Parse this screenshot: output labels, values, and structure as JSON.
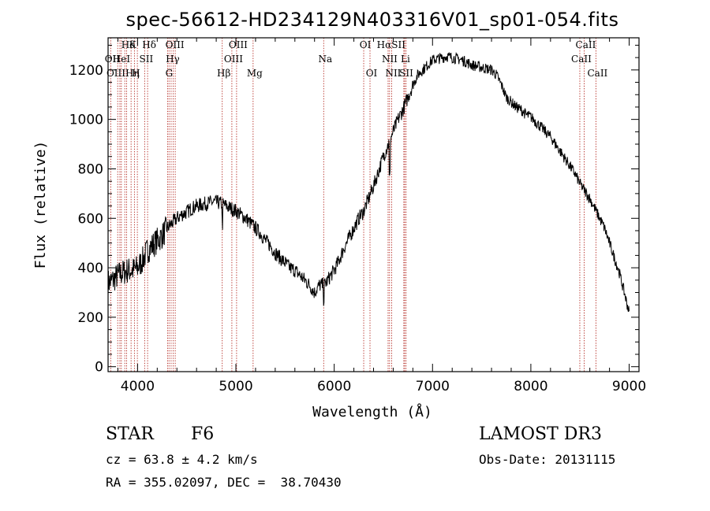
{
  "chart_data": {
    "type": "line",
    "title": "spec-56612-HD234129N403316V01_sp01-054.fits",
    "xlabel": "Wavelength (Å)",
    "ylabel": "Flux (relative)",
    "xlim": [
      3700,
      9100
    ],
    "ylim": [
      -20,
      1330
    ],
    "xticks": [
      4000,
      5000,
      6000,
      7000,
      8000,
      9000
    ],
    "yticks": [
      0,
      200,
      400,
      600,
      800,
      1000,
      1200
    ],
    "series": [
      {
        "name": "spectrum",
        "x": [
          3700,
          3750,
          3800,
          3850,
          3900,
          3950,
          4000,
          4050,
          4100,
          4150,
          4200,
          4250,
          4300,
          4350,
          4400,
          4450,
          4500,
          4550,
          4600,
          4650,
          4700,
          4750,
          4800,
          4850,
          4900,
          4950,
          5000,
          5050,
          5100,
          5150,
          5200,
          5250,
          5300,
          5350,
          5400,
          5450,
          5500,
          5550,
          5600,
          5650,
          5700,
          5750,
          5800,
          5850,
          5900,
          5950,
          6000,
          6050,
          6100,
          6150,
          6200,
          6250,
          6300,
          6350,
          6400,
          6450,
          6500,
          6550,
          6600,
          6650,
          6700,
          6750,
          6800,
          6850,
          6900,
          6950,
          7000,
          7050,
          7100,
          7150,
          7200,
          7250,
          7300,
          7350,
          7400,
          7450,
          7500,
          7550,
          7600,
          7650,
          7700,
          7750,
          7800,
          7850,
          7900,
          7950,
          8000,
          8050,
          8100,
          8150,
          8200,
          8250,
          8300,
          8350,
          8400,
          8450,
          8500,
          8550,
          8600,
          8650,
          8700,
          8750,
          8800,
          8850,
          8900,
          8950,
          9000
        ],
        "y": [
          340,
          350,
          370,
          380,
          390,
          390,
          400,
          430,
          470,
          490,
          510,
          530,
          560,
          580,
          600,
          615,
          625,
          640,
          650,
          655,
          660,
          665,
          665,
          660,
          650,
          640,
          630,
          615,
          600,
          580,
          560,
          540,
          510,
          490,
          460,
          440,
          420,
          400,
          390,
          370,
          350,
          330,
          300,
          330,
          330,
          360,
          390,
          430,
          480,
          520,
          560,
          600,
          630,
          680,
          730,
          790,
          850,
          900,
          950,
          1000,
          1040,
          1090,
          1140,
          1180,
          1200,
          1220,
          1240,
          1245,
          1250,
          1255,
          1250,
          1245,
          1240,
          1230,
          1220,
          1215,
          1210,
          1205,
          1200,
          1180,
          1140,
          1090,
          1070,
          1050,
          1040,
          1020,
          1010,
          990,
          970,
          950,
          930,
          900,
          870,
          840,
          810,
          780,
          740,
          710,
          680,
          640,
          600,
          560,
          500,
          440,
          380,
          300,
          220
        ]
      }
    ],
    "line_markers": [
      {
        "label": "Hδ",
        "x": 3889,
        "row": 0
      },
      {
        "label": "K",
        "x": 3934,
        "row": 0
      },
      {
        "label": "Hδ",
        "x": 4102,
        "row": 0
      },
      {
        "label": "OIII",
        "x": 4363,
        "row": 0
      },
      {
        "label": "OIII",
        "x": 5007,
        "row": 0
      },
      {
        "label": "OI",
        "x": 6300,
        "row": 0
      },
      {
        "label": "HαSII",
        "x": 6563,
        "row": 0
      },
      {
        "label": "CaII",
        "x": 8542,
        "row": 0
      },
      {
        "label": "OII",
        "x": 3727,
        "row": 1
      },
      {
        "label": "HeI",
        "x": 3820,
        "row": 1
      },
      {
        "label": "SII",
        "x": 4072,
        "row": 1
      },
      {
        "label": "Hγ",
        "x": 4341,
        "row": 1
      },
      {
        "label": "OIII",
        "x": 4959,
        "row": 1
      },
      {
        "label": "Na",
        "x": 5893,
        "row": 1
      },
      {
        "label": "NII",
        "x": 6548,
        "row": 1
      },
      {
        "label": "Li",
        "x": 6708,
        "row": 1
      },
      {
        "label": "CaII",
        "x": 8498,
        "row": 1
      },
      {
        "label": "OIIIHη",
        "x": 3835,
        "row": 2
      },
      {
        "label": "H",
        "x": 3968,
        "row": 2
      },
      {
        "label": "G",
        "x": 4305,
        "row": 2
      },
      {
        "label": "Hβ",
        "x": 4861,
        "row": 2
      },
      {
        "label": "Mg",
        "x": 5175,
        "row": 2
      },
      {
        "label": "OI",
        "x": 6364,
        "row": 2
      },
      {
        "label": "NII",
        "x": 6584,
        "row": 2
      },
      {
        "label": "SII",
        "x": 6717,
        "row": 2
      },
      {
        "label": "CaII",
        "x": 8662,
        "row": 2
      }
    ],
    "extra_line_x": [
      3798,
      3870,
      3998,
      4320,
      4383,
      6731,
      8542
    ]
  },
  "info": {
    "object_class": "STAR",
    "subclass": "F6",
    "survey": "LAMOST DR3",
    "cz": "cz = 63.8 ± 4.2 km/s",
    "obs_date": "Obs-Date: 20131115",
    "coords": "RA = 355.02097, DEC =  38.70430"
  }
}
